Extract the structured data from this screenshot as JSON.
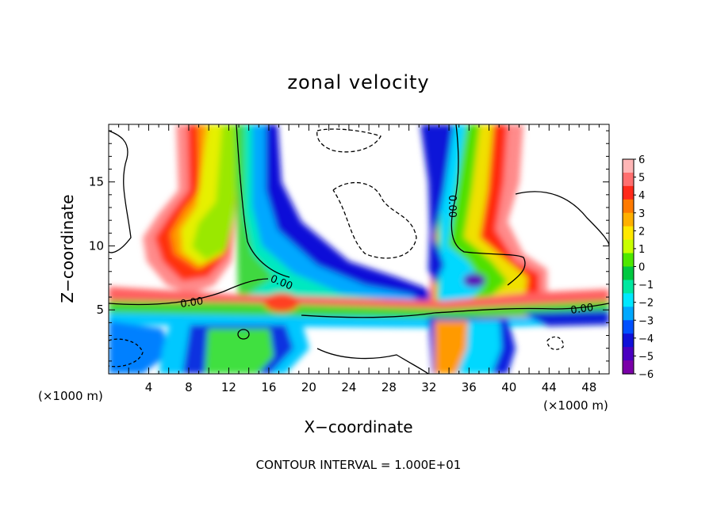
{
  "chart_data": {
    "type": "heatmap",
    "title": "zonal velocity",
    "xlabel": "X−coordinate",
    "ylabel": "Z−coordinate",
    "x_unit_left": "(×1000 m)",
    "x_unit_right": "(×1000 m)",
    "footer": "CONTOUR INTERVAL = 1.000E+01",
    "xlim": [
      0,
      50
    ],
    "ylim": [
      0,
      19.5
    ],
    "x_ticks": [
      4,
      8,
      12,
      16,
      20,
      24,
      28,
      32,
      36,
      40,
      44,
      48
    ],
    "y_ticks": [
      5,
      10,
      15
    ],
    "colorbar": {
      "ticks": [
        6,
        5,
        4,
        3,
        2,
        1,
        0,
        -1,
        -2,
        -3,
        -4,
        -5,
        -6
      ],
      "range": [
        -6,
        6
      ],
      "colors": [
        "#ffb6b6",
        "#ff6f6f",
        "#ff2a1a",
        "#ff7a00",
        "#ffb000",
        "#ffe800",
        "#c8ff00",
        "#4ee800",
        "#00c840",
        "#00e8a0",
        "#00e8ff",
        "#00a8ff",
        "#0050ff",
        "#1010d8",
        "#4a00c0",
        "#7a00a8"
      ]
    },
    "contour_labels": [
      "0.00",
      "0.00",
      "0.00",
      "0.00"
    ],
    "grid": false,
    "legend": "colorbar-right"
  }
}
